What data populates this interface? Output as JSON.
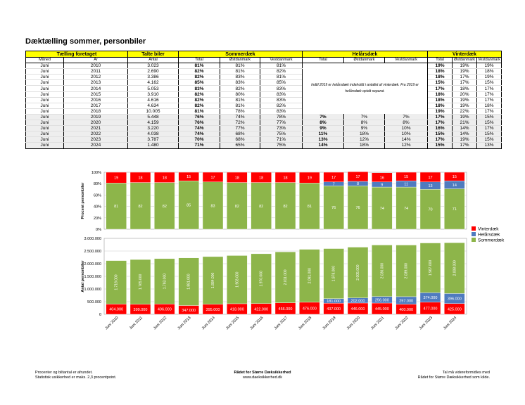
{
  "title": "Dæktælling sommer, personbiler",
  "table": {
    "group_headers": [
      "Tælling foretaget",
      "Talte biler",
      "Sommerdæk",
      "Helårsdæk",
      "Vinterdæk"
    ],
    "sub_headers": [
      "Måned",
      "År",
      "Antal",
      "Total",
      "Østdanmark",
      "Vestdanmark",
      "Total",
      "Østdanmark",
      "Vestdanmark",
      "Total",
      "Østdanmark",
      "Vestdanmark"
    ],
    "note": "Indtil 2019 er helårsdæk indeholdt i antallet af vinterdæk. Fra 2019 er helårsdæk optalt separat.",
    "rows": [
      {
        "maaned": "Juni",
        "aar": "2010",
        "antal": "3.023",
        "s_total": "81%",
        "s_ost": "81%",
        "s_vest": "81%",
        "h_total": "",
        "h_ost": "",
        "h_vest": "",
        "v_total": "19%",
        "v_ost": "19%",
        "v_vest": "19%"
      },
      {
        "maaned": "Juni",
        "aar": "2011",
        "antal": "2.690",
        "s_total": "82%",
        "s_ost": "81%",
        "s_vest": "82%",
        "h_total": "",
        "h_ost": "",
        "h_vest": "",
        "v_total": "18%",
        "v_ost": "19%",
        "v_vest": "18%"
      },
      {
        "maaned": "Juni",
        "aar": "2012",
        "antal": "3.386",
        "s_total": "82%",
        "s_ost": "83%",
        "s_vest": "81%",
        "h_total": "",
        "h_ost": "",
        "h_vest": "",
        "v_total": "18%",
        "v_ost": "17%",
        "v_vest": "19%"
      },
      {
        "maaned": "Juni",
        "aar": "2013",
        "antal": "4.162",
        "s_total": "85%",
        "s_ost": "83%",
        "s_vest": "85%",
        "h_total": "",
        "h_ost": "",
        "h_vest": "",
        "v_total": "15%",
        "v_ost": "17%",
        "v_vest": "15%"
      },
      {
        "maaned": "Juni",
        "aar": "2014",
        "antal": "5.053",
        "s_total": "83%",
        "s_ost": "82%",
        "s_vest": "83%",
        "h_total": "",
        "h_ost": "",
        "h_vest": "",
        "v_total": "17%",
        "v_ost": "18%",
        "v_vest": "17%"
      },
      {
        "maaned": "Juni",
        "aar": "2015",
        "antal": "3.910",
        "s_total": "82%",
        "s_ost": "80%",
        "s_vest": "83%",
        "h_total": "",
        "h_ost": "",
        "h_vest": "",
        "v_total": "18%",
        "v_ost": "20%",
        "v_vest": "17%"
      },
      {
        "maaned": "Juni",
        "aar": "2016",
        "antal": "4.616",
        "s_total": "82%",
        "s_ost": "81%",
        "s_vest": "83%",
        "h_total": "",
        "h_ost": "",
        "h_vest": "",
        "v_total": "18%",
        "v_ost": "19%",
        "v_vest": "17%"
      },
      {
        "maaned": "Juni",
        "aar": "2017",
        "antal": "4.634",
        "s_total": "82%",
        "s_ost": "81%",
        "s_vest": "82%",
        "h_total": "",
        "h_ost": "",
        "h_vest": "",
        "v_total": "18%",
        "v_ost": "19%",
        "v_vest": "18%"
      },
      {
        "maaned": "Juni",
        "aar": "2018",
        "antal": "10.005",
        "s_total": "81%",
        "s_ost": "78%",
        "s_vest": "83%",
        "h_total": "",
        "h_ost": "",
        "h_vest": "",
        "v_total": "19%",
        "v_ost": "22%",
        "v_vest": "17%"
      },
      {
        "maaned": "Juni",
        "aar": "2019",
        "antal": "5.448",
        "s_total": "76%",
        "s_ost": "74%",
        "s_vest": "78%",
        "h_total": "7%",
        "h_ost": "7%",
        "h_vest": "7%",
        "v_total": "17%",
        "v_ost": "19%",
        "v_vest": "15%"
      },
      {
        "maaned": "Juni",
        "aar": "2020",
        "antal": "4.159",
        "s_total": "76%",
        "s_ost": "72%",
        "s_vest": "77%",
        "h_total": "8%",
        "h_ost": "8%",
        "h_vest": "8%",
        "v_total": "17%",
        "v_ost": "21%",
        "v_vest": "15%"
      },
      {
        "maaned": "Juni",
        "aar": "2021",
        "antal": "3.220",
        "s_total": "74%",
        "s_ost": "77%",
        "s_vest": "73%",
        "h_total": "9%",
        "h_ost": "9%",
        "h_vest": "10%",
        "v_total": "16%",
        "v_ost": "14%",
        "v_vest": "17%"
      },
      {
        "maaned": "Juni",
        "aar": "2022",
        "antal": "4.038",
        "s_total": "74%",
        "s_ost": "68%",
        "s_vest": "75%",
        "h_total": "11%",
        "h_ost": "18%",
        "h_vest": "10%",
        "v_total": "15%",
        "v_ost": "14%",
        "v_vest": "15%"
      },
      {
        "maaned": "Juni",
        "aar": "2023",
        "antal": "3.787",
        "s_total": "70%",
        "s_ost": "68%",
        "s_vest": "71%",
        "h_total": "13%",
        "h_ost": "12%",
        "h_vest": "14%",
        "v_total": "17%",
        "v_ost": "19%",
        "v_vest": "15%"
      },
      {
        "maaned": "Juni",
        "aar": "2024",
        "antal": "1.480",
        "s_total": "71%",
        "s_ost": "65%",
        "s_vest": "75%",
        "h_total": "14%",
        "h_ost": "18%",
        "h_vest": "12%",
        "v_total": "15%",
        "v_ost": "17%",
        "v_vest": "13%"
      }
    ]
  },
  "chart_data": [
    {
      "type": "bar",
      "stacked": true,
      "categories": [
        "Juni 2010",
        "Juni 2011",
        "Juni 2012",
        "Juni 2013",
        "Juni 2014",
        "Juni 2015",
        "Juni 2016",
        "Juni 2017",
        "Juni 2018",
        "Juni 2019",
        "Juni 2020",
        "Juni 2021",
        "Juni 2022",
        "Juni 2023",
        "Juni 2024"
      ],
      "ylabel": "Procent  personbiler",
      "ylim": [
        0,
        100
      ],
      "yticks": [
        "0%",
        "20%",
        "40%",
        "60%",
        "80%",
        "100%"
      ],
      "grid": true,
      "series": [
        {
          "name": "Sommerdæk",
          "color": "#8db54a",
          "values": [
            81,
            82,
            82,
            85,
            83,
            82,
            82,
            82,
            81,
            76,
            76,
            74,
            74,
            70,
            71
          ],
          "labels": [
            "81",
            "82",
            "82",
            "85",
            "83",
            "82",
            "82",
            "82",
            "81",
            "76",
            "76",
            "74",
            "74",
            "70",
            "71"
          ]
        },
        {
          "name": "Helårsdæk",
          "color": "#4f7bbf",
          "values": [
            0,
            0,
            0,
            0,
            0,
            0,
            0,
            0,
            0,
            7,
            8,
            9,
            11,
            13,
            14
          ],
          "labels": [
            "",
            "",
            "",
            "",
            "",
            "",
            "",
            "",
            "",
            "7",
            "8",
            "9",
            "11",
            "13",
            "14"
          ]
        },
        {
          "name": "Vinterdæk",
          "color": "#ff0000",
          "values": [
            19,
            18,
            18,
            15,
            17,
            18,
            18,
            18,
            19,
            17,
            17,
            16,
            15,
            17,
            15
          ],
          "labels": [
            "19",
            "18",
            "18",
            "15",
            "17",
            "18",
            "18",
            "18",
            "19",
            "17",
            "17",
            "16",
            "15",
            "17",
            "15"
          ]
        }
      ]
    },
    {
      "type": "bar",
      "stacked": true,
      "categories": [
        "Juni 2010",
        "Juni 2011",
        "Juni 2012",
        "Juni 2013",
        "Juni 2014",
        "Juni 2015",
        "Juni 2016",
        "Juni 2017",
        "Juni 2018",
        "Juni 2019",
        "Juni 2020",
        "Juni 2021",
        "Juni 2022",
        "Juni 2023",
        "Juni 2024"
      ],
      "ylabel": "Antal personbiler",
      "ylim": [
        0,
        3000000
      ],
      "yticks": [
        "0",
        "500.000",
        "1.000.000",
        "1.500.000",
        "2.000.000",
        "2.500.000",
        "3.000.000"
      ],
      "grid": true,
      "legend": "right",
      "series": [
        {
          "name": "Vinterdæk",
          "color": "#ff0000",
          "values": [
            404000,
            399000,
            406000,
            347000,
            395000,
            418000,
            422000,
            456000,
            476000,
            437000,
            446000,
            445000,
            400000,
            477000,
            425000
          ],
          "labels": [
            "404.000",
            "399.000",
            "406.000",
            "347.000",
            "395.000",
            "418.000",
            "422.000",
            "456.000",
            "476.000",
            "437.000",
            "446.000",
            "445.000",
            "400.000",
            "477.000",
            "425.000"
          ]
        },
        {
          "name": "Helårsdæk",
          "color": "#4f7bbf",
          "values": [
            0,
            0,
            0,
            0,
            0,
            0,
            0,
            0,
            0,
            181000,
            202000,
            256000,
            297000,
            374000,
            396000
          ],
          "labels": [
            "",
            "",
            "",
            "",
            "",
            "",
            "",
            "",
            "",
            "181.000",
            "202.000",
            "256.000",
            "297.000",
            "374.000",
            "396.000"
          ]
        },
        {
          "name": "Sommerdæk",
          "color": "#8db54a",
          "values": [
            1718000,
            1765000,
            1793000,
            1881000,
            1884000,
            1903000,
            1970000,
            2011000,
            2091000,
            1978000,
            2005000,
            2036000,
            2039000,
            1967000,
            2008000
          ],
          "labels": [
            "1.718.000",
            "1.765.000",
            "1.793.000",
            "1.881.000",
            "1.884.000",
            "1.903.000",
            "1.970.000",
            "2.011.000",
            "2.091.000",
            "1.978.000",
            "2.005.000",
            "2.036.000",
            "2.039.000",
            "1.967.000",
            "2.008.000"
          ]
        }
      ]
    }
  ],
  "legend": [
    "Vinterdæk",
    "Helårsdæk",
    "Sommerdæk"
  ],
  "footer": {
    "left": [
      "Procenter og biltantal er afrundet.",
      "Statistisk usikkerhed er maks. 2,3 procentpoint."
    ],
    "center": [
      "Rådet for Større Dæksikkerhed",
      "www.daeksikkerhed.dk"
    ],
    "right": [
      "Tal må videreformidles med",
      "Rådet for Større Dæksikkerhed som kilde."
    ]
  }
}
